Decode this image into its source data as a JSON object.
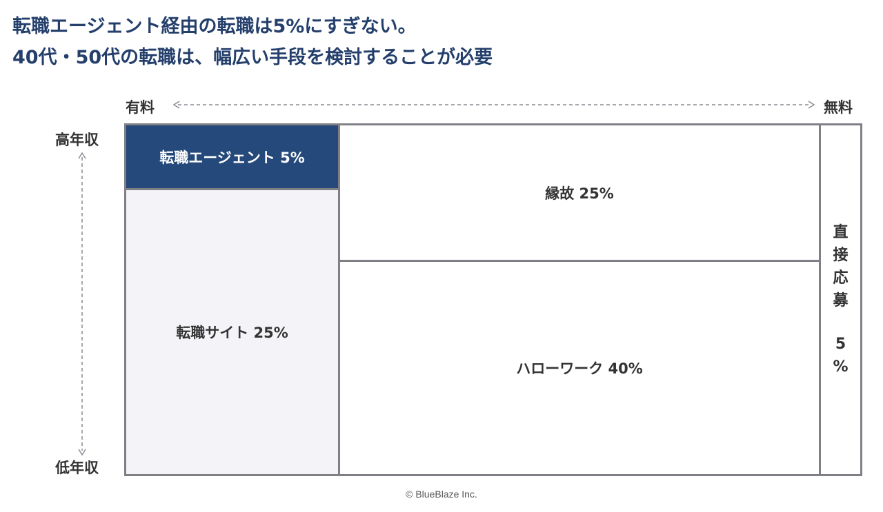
{
  "headline": {
    "line1": "転職エージェント経由の転職は5%にすぎない。",
    "line2": "40代・50代の転職は、幅広い手段を検討することが必要"
  },
  "axes": {
    "x_left": "有料",
    "x_right": "無料",
    "y_top": "高年収",
    "y_bottom": "低年収"
  },
  "segments": {
    "agent": "転職エージェント 5%",
    "site": "転職サイト 25%",
    "connection": "縁故 25%",
    "hellowork": "ハローワーク 40%",
    "direct_chars": [
      "直",
      "接",
      "応",
      "募"
    ],
    "direct_pct_chars": [
      "5",
      "%"
    ]
  },
  "footer": "© BlueBlaze Inc.",
  "colors": {
    "title": "#243f6b",
    "agent_fill": "#24497a",
    "site_fill": "#f4f4f8",
    "border": "#7f7f85"
  }
}
